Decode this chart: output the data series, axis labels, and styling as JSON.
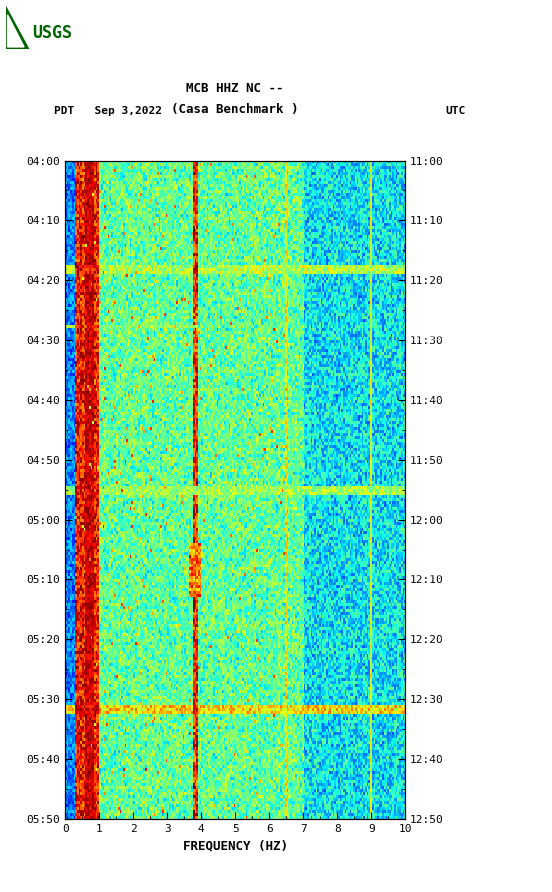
{
  "title_line1": "MCB HHZ NC --",
  "title_line2": "(Casa Benchmark )",
  "date_label": "PDT   Sep 3,2022",
  "utc_label": "UTC",
  "xlabel": "FREQUENCY (HZ)",
  "freq_min": 0,
  "freq_max": 10,
  "freq_ticks": [
    0,
    1,
    2,
    3,
    4,
    5,
    6,
    7,
    8,
    9,
    10
  ],
  "pdt_ticks": [
    "04:00",
    "04:10",
    "04:20",
    "04:30",
    "04:40",
    "04:50",
    "05:00",
    "05:10",
    "05:20",
    "05:30",
    "05:40",
    "05:50"
  ],
  "utc_ticks": [
    "11:00",
    "11:10",
    "11:20",
    "11:30",
    "11:40",
    "11:50",
    "12:00",
    "12:10",
    "12:20",
    "12:30",
    "12:40",
    "12:50"
  ],
  "background_color": "#ffffff",
  "colormap": "jet",
  "seed": 42,
  "n_freq": 200,
  "n_time": 220,
  "usgs_color": "#006400",
  "tick_fontsize": 8,
  "label_fontsize": 9,
  "title_fontsize": 9
}
